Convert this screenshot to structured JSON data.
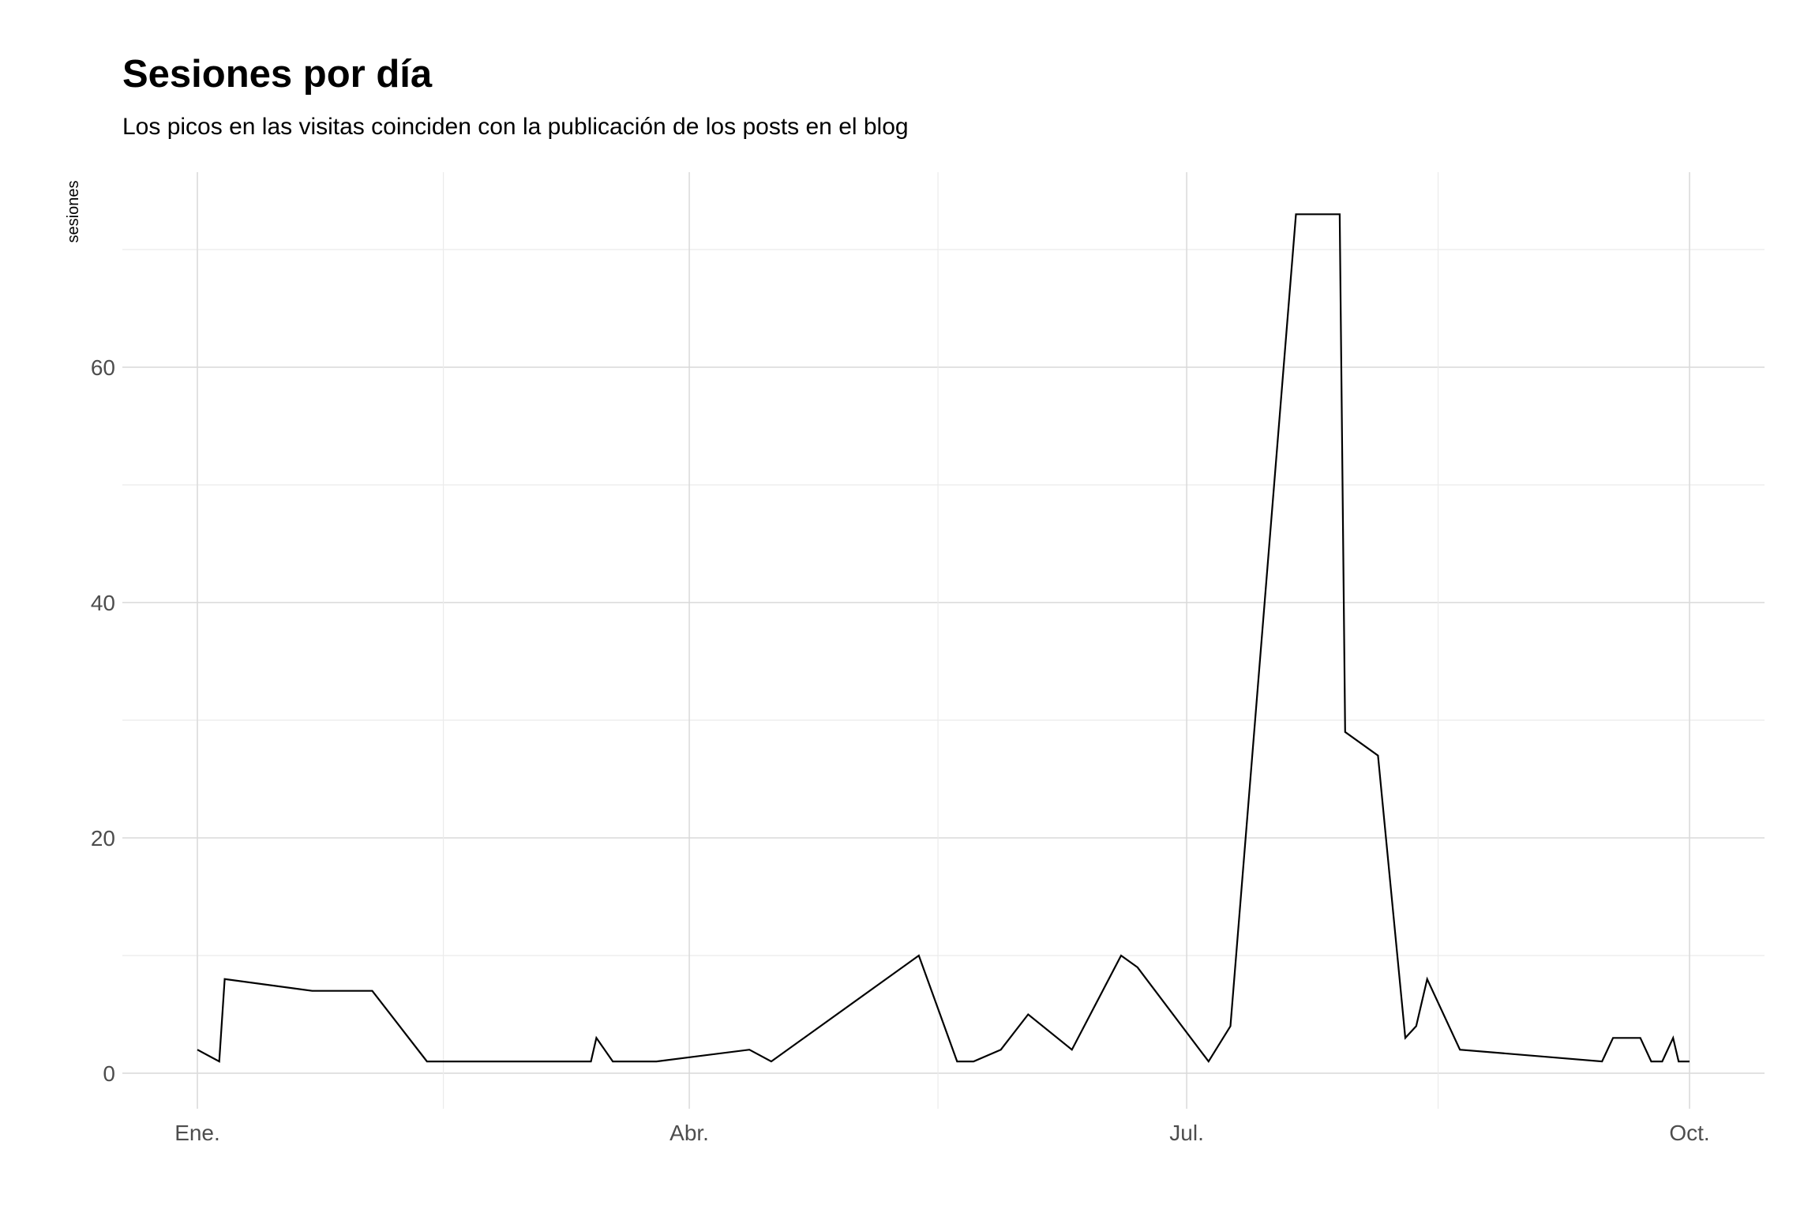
{
  "chart_data": {
    "type": "line",
    "title": "Sesiones por día",
    "subtitle": "Los picos en las visitas coinciden con la publicación de los posts en el blog",
    "xlabel": "",
    "ylabel": "sesiones",
    "x_ticks": [
      {
        "label": "Ene.",
        "date": "2019-01-01"
      },
      {
        "label": "Abr.",
        "date": "2019-04-01"
      },
      {
        "label": "Jul.",
        "date": "2019-07-01"
      },
      {
        "label": "Oct.",
        "date": "2019-10-01"
      }
    ],
    "y_ticks": [
      0,
      20,
      40,
      60
    ],
    "ylim": [
      0,
      73
    ],
    "xlim": [
      "2018-12-14",
      "2019-10-10"
    ],
    "grid": true,
    "legend": "none",
    "line_color": "#000000",
    "series": [
      {
        "x": [
          "2019-01-01",
          "2019-01-05",
          "2019-01-06",
          "2019-01-22",
          "2019-02-02",
          "2019-02-12",
          "2019-02-13",
          "2019-02-20",
          "2019-03-14",
          "2019-03-15",
          "2019-03-18",
          "2019-03-26",
          "2019-04-12",
          "2019-04-16",
          "2019-05-13",
          "2019-05-20",
          "2019-05-21",
          "2019-05-23",
          "2019-05-28",
          "2019-06-02",
          "2019-06-10",
          "2019-06-19",
          "2019-06-22",
          "2019-07-05",
          "2019-07-09",
          "2019-07-21",
          "2019-07-29",
          "2019-07-30",
          "2019-08-05",
          "2019-08-10",
          "2019-08-12",
          "2019-08-14",
          "2019-08-20",
          "2019-09-15",
          "2019-09-17",
          "2019-09-22",
          "2019-09-24",
          "2019-09-26",
          "2019-09-28",
          "2019-09-29",
          "2019-10-01"
        ],
        "y": [
          2,
          1,
          8,
          7,
          7,
          1,
          1,
          1,
          1,
          3,
          1,
          1,
          2,
          1,
          10,
          1,
          1,
          1,
          2,
          5,
          2,
          10,
          9,
          1,
          4,
          73,
          73,
          29,
          27,
          3,
          4,
          8,
          2,
          1,
          3,
          3,
          1,
          1,
          3,
          1,
          1
        ]
      }
    ]
  }
}
